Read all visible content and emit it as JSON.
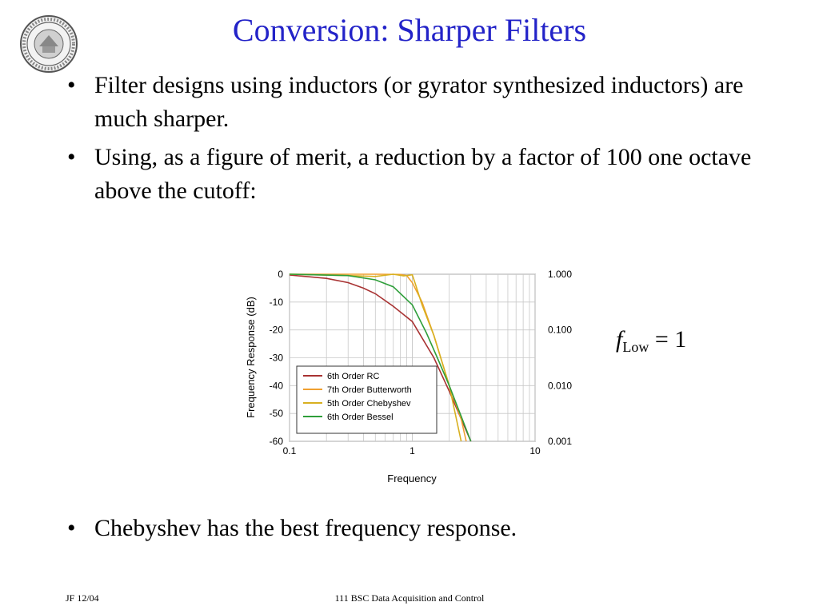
{
  "title": "Conversion: Sharper Filters",
  "bullets": [
    "Filter designs using inductors (or gyrator synthesized inductors) are much sharper.",
    "Using, as a figure of merit, a reduction by a factor of 100 one octave above the cutoff:",
    "Chebyshev has the best frequency response."
  ],
  "bullet_char": "•",
  "formula": {
    "symbol": "f",
    "subscript": "Low",
    "rhs": "= 1"
  },
  "footer": {
    "left": "JF 12/04",
    "center": "111 BSC Data Acquisition and Control"
  },
  "chart_data": {
    "type": "line",
    "title": "",
    "xlabel": "Frequency",
    "ylabel": "Frequency Response (dB)",
    "x_scale": "log",
    "xlim": [
      0.1,
      10
    ],
    "ylim": [
      -60,
      0
    ],
    "x_ticks": [
      "0.1",
      "1",
      "10"
    ],
    "x_tick_values": [
      0.1,
      1,
      10
    ],
    "y_ticks": [
      "0",
      "-10",
      "-20",
      "-30",
      "-40",
      "-50",
      "-60"
    ],
    "y_tick_values": [
      0,
      -10,
      -20,
      -30,
      -40,
      -50,
      -60
    ],
    "y2_ticks": [
      "1.000",
      "0.100",
      "0.010",
      "0.001"
    ],
    "y2_tick_values_db": [
      0,
      -20,
      -40,
      -60
    ],
    "grid": true,
    "legend_position": "bottom-left",
    "series": [
      {
        "name": "6th Order RC",
        "color": "#a83232",
        "x": [
          0.1,
          0.2,
          0.3,
          0.4,
          0.5,
          0.7,
          1.0,
          1.5,
          2.0,
          3.0
        ],
        "y": [
          -0.3,
          -1.5,
          -3,
          -5,
          -7,
          -11.5,
          -17,
          -30,
          -42,
          -60
        ]
      },
      {
        "name": "7th Order Butterworth",
        "color": "#f0a030",
        "x": [
          0.1,
          0.5,
          0.8,
          0.9,
          1.0,
          1.2,
          1.5,
          2.0,
          2.5,
          2.75
        ],
        "y": [
          0,
          0,
          -0.1,
          -0.5,
          -3,
          -10,
          -22,
          -40,
          -52,
          -60
        ]
      },
      {
        "name": "5th Order Chebyshev",
        "color": "#d8b020",
        "x": [
          0.1,
          0.3,
          0.5,
          0.7,
          0.85,
          1.0,
          1.05,
          1.2,
          1.5,
          2.0,
          2.5
        ],
        "y": [
          0,
          -0.5,
          -0.8,
          0,
          -0.6,
          -0.2,
          -3,
          -11,
          -22,
          -40,
          -60
        ]
      },
      {
        "name": "6th Order Bessel",
        "color": "#2e9e3a",
        "x": [
          0.1,
          0.3,
          0.5,
          0.7,
          1.0,
          1.3,
          1.6,
          2.0,
          2.5,
          3.0
        ],
        "y": [
          0,
          -0.5,
          -2,
          -4.5,
          -11,
          -21,
          -30,
          -40,
          -51,
          -60
        ]
      }
    ]
  }
}
